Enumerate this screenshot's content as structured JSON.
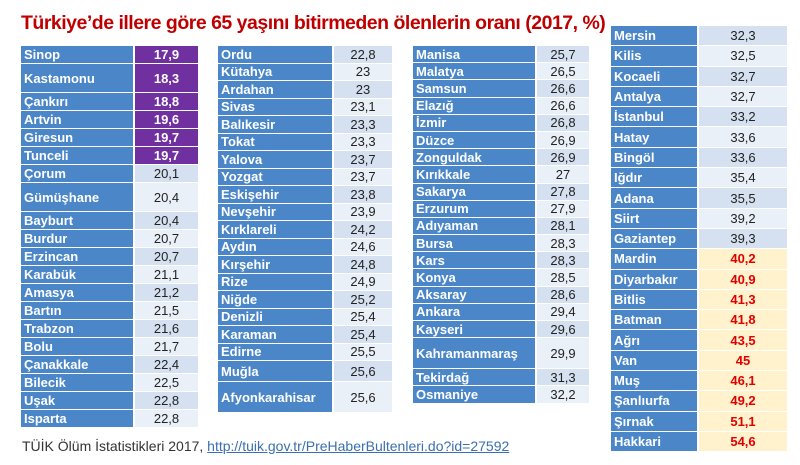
{
  "title": "Türkiye’de illere göre 65 yaşını bitirmeden ölenlerin oranı (2017, %)",
  "footer": {
    "source": "TÜİK Ölüm İstatistikleri 2017, ",
    "link": "http://tuik.gov.tr/PreHaberBultenleri.do?id=27592"
  },
  "colors": {
    "header_cell": "#4a86c8",
    "lowest": "#7030a0",
    "highest_bg": "#fff2cc",
    "highest_text": "#e00000",
    "title": "#c00000"
  },
  "columns": [
    [
      {
        "name": "Sinop",
        "value": "17,9",
        "highlight": "low"
      },
      {
        "name": "Kastamonu",
        "value": "18,3",
        "highlight": "low"
      },
      {
        "name": "Çankırı",
        "value": "18,8",
        "highlight": "low"
      },
      {
        "name": "Artvin",
        "value": "19,6",
        "highlight": "low"
      },
      {
        "name": "Giresun",
        "value": "19,7",
        "highlight": "low"
      },
      {
        "name": "Tunceli",
        "value": "19,7",
        "highlight": "low"
      },
      {
        "name": "Çorum",
        "value": "20,1"
      },
      {
        "name": "Gümüşhane",
        "value": "20,4"
      },
      {
        "name": "Bayburt",
        "value": "20,4"
      },
      {
        "name": "Burdur",
        "value": "20,7"
      },
      {
        "name": "Erzincan",
        "value": "20,7"
      },
      {
        "name": "Karabük",
        "value": "21,1"
      },
      {
        "name": "Amasya",
        "value": "21,2"
      },
      {
        "name": "Bartın",
        "value": "21,5"
      },
      {
        "name": "Trabzon",
        "value": "21,6"
      },
      {
        "name": "Bolu",
        "value": "21,7"
      },
      {
        "name": "Çanakkale",
        "value": "22,4"
      },
      {
        "name": "Bilecik",
        "value": "22,5"
      },
      {
        "name": "Uşak",
        "value": "22,8"
      },
      {
        "name": "Isparta",
        "value": "22,8"
      }
    ],
    [
      {
        "name": "Ordu",
        "value": "22,8"
      },
      {
        "name": "Kütahya",
        "value": "23"
      },
      {
        "name": "Ardahan",
        "value": "23"
      },
      {
        "name": "Sivas",
        "value": "23,1"
      },
      {
        "name": "Balıkesir",
        "value": "23,3"
      },
      {
        "name": "Tokat",
        "value": "23,3"
      },
      {
        "name": "Yalova",
        "value": "23,7"
      },
      {
        "name": "Yozgat",
        "value": "23,7"
      },
      {
        "name": "Eskişehir",
        "value": "23,8"
      },
      {
        "name": "Nevşehir",
        "value": "23,9"
      },
      {
        "name": "Kırklareli",
        "value": "24,2"
      },
      {
        "name": "Aydın",
        "value": "24,6"
      },
      {
        "name": "Kırşehir",
        "value": "24,8"
      },
      {
        "name": "Rize",
        "value": "24,9"
      },
      {
        "name": "Niğde",
        "value": "25,2"
      },
      {
        "name": "Denizli",
        "value": "25,4"
      },
      {
        "name": "Karaman",
        "value": "25,4"
      },
      {
        "name": "Edirne",
        "value": "25,5"
      },
      {
        "name": "Muğla",
        "value": "25,6"
      },
      {
        "name": "Afyonkarahisar",
        "value": "25,6"
      }
    ],
    [
      {
        "name": "Manisa",
        "value": "25,7"
      },
      {
        "name": "Malatya",
        "value": "26,5"
      },
      {
        "name": "Samsun",
        "value": "26,6"
      },
      {
        "name": "Elazığ",
        "value": "26,6"
      },
      {
        "name": "İzmir",
        "value": "26,8"
      },
      {
        "name": "Düzce",
        "value": "26,9"
      },
      {
        "name": "Zonguldak",
        "value": "26,9"
      },
      {
        "name": "Kırıkkale",
        "value": "27"
      },
      {
        "name": "Sakarya",
        "value": "27,8"
      },
      {
        "name": "Erzurum",
        "value": "27,9"
      },
      {
        "name": "Adıyaman",
        "value": "28,1"
      },
      {
        "name": "Bursa",
        "value": "28,3"
      },
      {
        "name": "Kars",
        "value": "28,3"
      },
      {
        "name": "Konya",
        "value": "28,5"
      },
      {
        "name": "Aksaray",
        "value": "28,6"
      },
      {
        "name": "Ankara",
        "value": "29,4"
      },
      {
        "name": "Kayseri",
        "value": "29,6"
      },
      {
        "name": "Kahramanmaraş",
        "value": "29,9"
      },
      {
        "name": "Tekirdağ",
        "value": "31,3"
      },
      {
        "name": "Osmaniye",
        "value": "32,2"
      }
    ],
    [
      {
        "name": "Mersin",
        "value": "32,3"
      },
      {
        "name": "Kilis",
        "value": "32,5"
      },
      {
        "name": "Kocaeli",
        "value": "32,7"
      },
      {
        "name": "Antalya",
        "value": "32,7"
      },
      {
        "name": "İstanbul",
        "value": "33,2"
      },
      {
        "name": "Hatay",
        "value": "33,6"
      },
      {
        "name": "Bingöl",
        "value": "33,6"
      },
      {
        "name": "Iğdır",
        "value": "35,4"
      },
      {
        "name": "Adana",
        "value": "35,5"
      },
      {
        "name": "Siirt",
        "value": "39,2"
      },
      {
        "name": "Gaziantep",
        "value": "39,3"
      },
      {
        "name": "Mardin",
        "value": "40,2",
        "highlight": "high"
      },
      {
        "name": "Diyarbakır",
        "value": "40,9",
        "highlight": "high"
      },
      {
        "name": "Bitlis",
        "value": "41,3",
        "highlight": "high"
      },
      {
        "name": "Batman",
        "value": "41,8",
        "highlight": "high"
      },
      {
        "name": "Ağrı",
        "value": "43,5",
        "highlight": "high"
      },
      {
        "name": "Van",
        "value": "45",
        "highlight": "high"
      },
      {
        "name": "Muş",
        "value": "46,1",
        "highlight": "high"
      },
      {
        "name": "Şanlıurfa",
        "value": "49,2",
        "highlight": "high"
      },
      {
        "name": "Şırnak",
        "value": "51,1",
        "highlight": "high"
      },
      {
        "name": "Hakkari",
        "value": "54,6",
        "highlight": "high"
      }
    ]
  ]
}
